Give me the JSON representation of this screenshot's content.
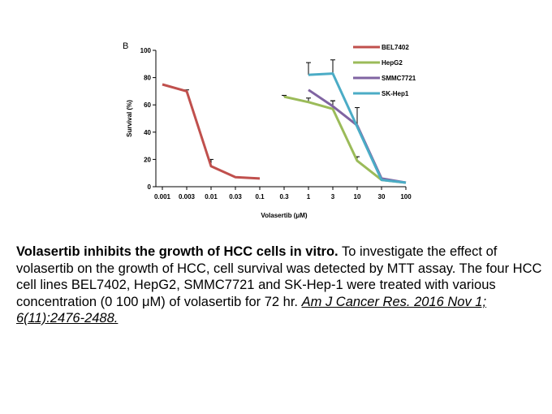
{
  "panel_label": "B",
  "chart_data": {
    "type": "line",
    "xlabel": "Volasertib (μM)",
    "ylabel": "Survival (%)",
    "x_scale": "log",
    "categories": [
      "0.001",
      "0.003",
      "0.01",
      "0.03",
      "0.1",
      "0.3",
      "1",
      "3",
      "10",
      "30",
      "100"
    ],
    "ylim": [
      0,
      100
    ],
    "yticks": [
      0,
      20,
      40,
      60,
      80,
      100
    ],
    "grid": false,
    "legend_position": "top-right",
    "series": [
      {
        "name": "BEL7402",
        "color": "#c0504d",
        "x": [
          0.001,
          0.003,
          0.01,
          0.03,
          0.1
        ],
        "y": [
          75,
          70,
          15,
          7,
          6
        ],
        "err": [
          0,
          1,
          5,
          0,
          0
        ]
      },
      {
        "name": "HepG2",
        "color": "#9bbb59",
        "x": [
          0.3,
          1,
          3,
          10,
          30,
          100
        ],
        "y": [
          66,
          62,
          57,
          19,
          5,
          3
        ],
        "err": [
          1,
          3,
          6,
          3,
          0,
          0
        ]
      },
      {
        "name": "SMMC7721",
        "color": "#8064a2",
        "x": [
          1,
          3,
          10,
          30,
          100
        ],
        "y": [
          71,
          59,
          45,
          6,
          3
        ],
        "err": [
          0,
          4,
          0,
          0,
          0
        ]
      },
      {
        "name": "SK-Hep1",
        "color": "#4bacc6",
        "x": [
          1,
          3,
          10,
          30,
          100
        ],
        "y": [
          82,
          83,
          44,
          5,
          3
        ],
        "err": [
          9,
          10,
          14,
          0,
          0
        ]
      }
    ]
  },
  "caption": {
    "title": "Volasertib inhibits the growth of HCC cells in vitro.",
    "body": " To investigate the effect of volasertib on the growth of HCC, cell survival was detected by MTT assay. The four HCC cell lines BEL7402, HepG2, SMMC7721 and SK-Hep-1 were treated with various concentration (0 100 μM) of volasertib for 72 hr. ",
    "reference": "Am J Cancer Res. 2016 Nov 1; 6(11):2476-2488."
  }
}
